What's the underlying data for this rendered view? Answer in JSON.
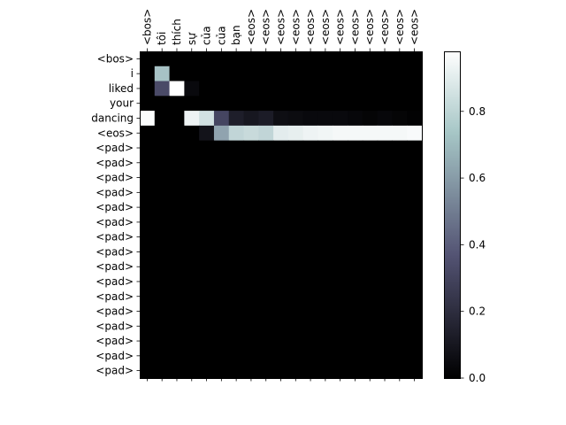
{
  "chart_data": {
    "type": "heatmap",
    "title": "",
    "xlabel": "",
    "ylabel": "",
    "colormap": "bone",
    "x_labels": [
      "<bos>",
      "tôi",
      "thích",
      "sự",
      "của",
      "của",
      "bạn",
      "<eos>",
      "<eos>",
      "<eos>",
      "<eos>",
      "<eos>",
      "<eos>",
      "<eos>",
      "<eos>",
      "<eos>",
      "<eos>",
      "<eos>",
      "<eos>"
    ],
    "y_labels": [
      "<bos>",
      "i",
      "liked",
      "your",
      "dancing",
      "<eos>",
      "<pad>",
      "<pad>",
      "<pad>",
      "<pad>",
      "<pad>",
      "<pad>",
      "<pad>",
      "<pad>",
      "<pad>",
      "<pad>",
      "<pad>",
      "<pad>",
      "<pad>",
      "<pad>",
      "<pad>",
      "<pad>"
    ],
    "values": [
      [
        0,
        0,
        0,
        0,
        0,
        0,
        0,
        0,
        0,
        0,
        0,
        0,
        0,
        0,
        0,
        0,
        0,
        0,
        0
      ],
      [
        0,
        0.72,
        0,
        0,
        0,
        0,
        0,
        0,
        0,
        0,
        0,
        0,
        0,
        0,
        0,
        0,
        0,
        0,
        0
      ],
      [
        0,
        0.32,
        1.0,
        0.04,
        0,
        0,
        0,
        0,
        0,
        0,
        0,
        0,
        0,
        0,
        0,
        0,
        0,
        0,
        0
      ],
      [
        0,
        0,
        0,
        0,
        0,
        0,
        0,
        0,
        0,
        0,
        0,
        0,
        0,
        0,
        0,
        0,
        0,
        0,
        0
      ],
      [
        0.97,
        0,
        0,
        0.93,
        0.85,
        0.3,
        0.13,
        0.1,
        0.12,
        0.06,
        0.05,
        0.04,
        0.04,
        0.04,
        0.03,
        0.02,
        0.03,
        0.02,
        0.01
      ],
      [
        0,
        0,
        0,
        0,
        0.08,
        0.62,
        0.8,
        0.82,
        0.8,
        0.9,
        0.91,
        0.93,
        0.94,
        0.95,
        0.95,
        0.95,
        0.95,
        0.95,
        0.96
      ],
      [
        0,
        0,
        0,
        0,
        0,
        0,
        0,
        0,
        0,
        0,
        0,
        0,
        0,
        0,
        0,
        0,
        0,
        0,
        0
      ],
      [
        0,
        0,
        0,
        0,
        0,
        0,
        0,
        0,
        0,
        0,
        0,
        0,
        0,
        0,
        0,
        0,
        0,
        0,
        0
      ],
      [
        0,
        0,
        0,
        0,
        0,
        0,
        0,
        0,
        0,
        0,
        0,
        0,
        0,
        0,
        0,
        0,
        0,
        0,
        0
      ],
      [
        0,
        0,
        0,
        0,
        0,
        0,
        0,
        0,
        0,
        0,
        0,
        0,
        0,
        0,
        0,
        0,
        0,
        0,
        0
      ],
      [
        0,
        0,
        0,
        0,
        0,
        0,
        0,
        0,
        0,
        0,
        0,
        0,
        0,
        0,
        0,
        0,
        0,
        0,
        0
      ],
      [
        0,
        0,
        0,
        0,
        0,
        0,
        0,
        0,
        0,
        0,
        0,
        0,
        0,
        0,
        0,
        0,
        0,
        0,
        0
      ],
      [
        0,
        0,
        0,
        0,
        0,
        0,
        0,
        0,
        0,
        0,
        0,
        0,
        0,
        0,
        0,
        0,
        0,
        0,
        0
      ],
      [
        0,
        0,
        0,
        0,
        0,
        0,
        0,
        0,
        0,
        0,
        0,
        0,
        0,
        0,
        0,
        0,
        0,
        0,
        0
      ],
      [
        0,
        0,
        0,
        0,
        0,
        0,
        0,
        0,
        0,
        0,
        0,
        0,
        0,
        0,
        0,
        0,
        0,
        0,
        0
      ],
      [
        0,
        0,
        0,
        0,
        0,
        0,
        0,
        0,
        0,
        0,
        0,
        0,
        0,
        0,
        0,
        0,
        0,
        0,
        0
      ],
      [
        0,
        0,
        0,
        0,
        0,
        0,
        0,
        0,
        0,
        0,
        0,
        0,
        0,
        0,
        0,
        0,
        0,
        0,
        0
      ],
      [
        0,
        0,
        0,
        0,
        0,
        0,
        0,
        0,
        0,
        0,
        0,
        0,
        0,
        0,
        0,
        0,
        0,
        0,
        0
      ],
      [
        0,
        0,
        0,
        0,
        0,
        0,
        0,
        0,
        0,
        0,
        0,
        0,
        0,
        0,
        0,
        0,
        0,
        0,
        0
      ],
      [
        0,
        0,
        0,
        0,
        0,
        0,
        0,
        0,
        0,
        0,
        0,
        0,
        0,
        0,
        0,
        0,
        0,
        0,
        0
      ],
      [
        0,
        0,
        0,
        0,
        0,
        0,
        0,
        0,
        0,
        0,
        0,
        0,
        0,
        0,
        0,
        0,
        0,
        0,
        0
      ],
      [
        0,
        0,
        0,
        0,
        0,
        0,
        0,
        0,
        0,
        0,
        0,
        0,
        0,
        0,
        0,
        0,
        0,
        0,
        0
      ]
    ],
    "colorbar": {
      "range": [
        0,
        0.98
      ],
      "ticks": [
        0.0,
        0.2,
        0.4,
        0.6,
        0.8
      ],
      "tick_labels": [
        "0.0",
        "0.2",
        "0.4",
        "0.6",
        "0.8"
      ]
    }
  }
}
